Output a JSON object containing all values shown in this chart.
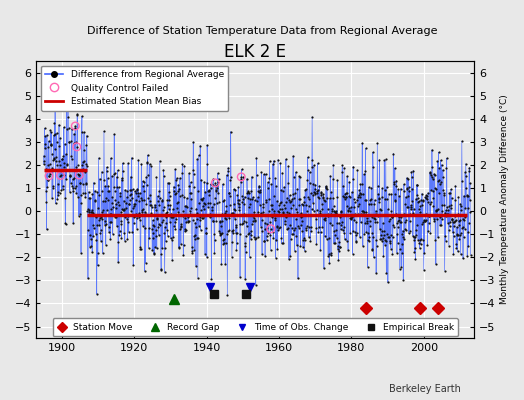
{
  "title": "ELK 2 E",
  "subtitle": "Difference of Station Temperature Data from Regional Average",
  "ylabel_right": "Monthly Temperature Anomaly Difference (°C)",
  "xlabel": "",
  "xlim": [
    1893,
    2014
  ],
  "ylim": [
    -5.5,
    6.5
  ],
  "yticks": [
    -5,
    -4,
    -3,
    -2,
    -1,
    0,
    1,
    2,
    3,
    4,
    5,
    6
  ],
  "xticks": [
    1900,
    1920,
    1940,
    1960,
    1980,
    2000
  ],
  "mean_bias_segments": [
    {
      "x_start": 1895,
      "x_end": 1907,
      "y": 1.8
    },
    {
      "x_start": 1907,
      "x_end": 2012,
      "y": -0.15
    }
  ],
  "station_moves": [
    1984,
    1999,
    2004
  ],
  "record_gaps": [
    1931
  ],
  "obs_changes": [
    1941,
    1952
  ],
  "empirical_breaks": [
    1942,
    1951
  ],
  "bg_color": "#e8e8e8",
  "plot_bg_color": "#e8e8e8",
  "line_color": "#4466ff",
  "bias_color": "#cc0000",
  "grid_color": "#ffffff",
  "marker_color": "#111111",
  "seed": 42
}
